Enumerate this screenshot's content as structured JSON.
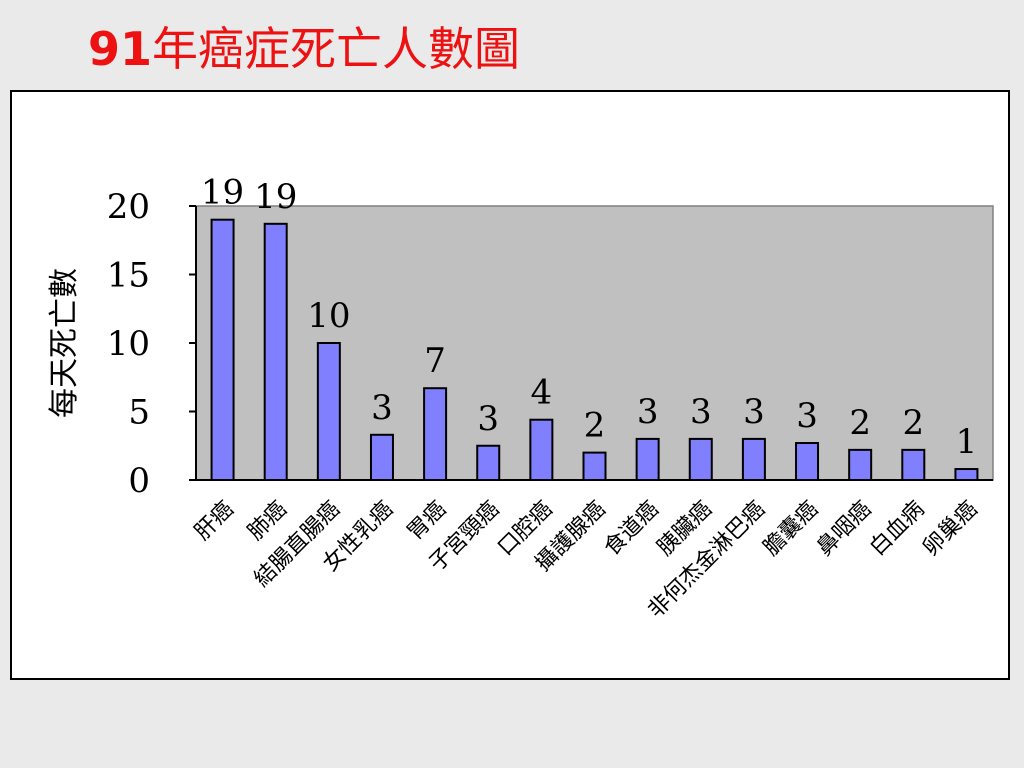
{
  "slide": {
    "title_num": "91",
    "title_text": "年癌症死亡人數圖"
  },
  "colors": {
    "title": "#ee1111",
    "plot_area": "#c0c0c0",
    "bar_fill": "#8080ff",
    "bar_stroke": "#000000",
    "frame_bg": "#ffffff",
    "slide_bg": "#eaeaea"
  },
  "chart_data": {
    "type": "bar",
    "title": "",
    "xlabel": "",
    "ylabel": "每天死亡數",
    "ylim": [
      0,
      20
    ],
    "yticks": [
      0,
      5,
      10,
      15,
      20
    ],
    "grid": false,
    "legend": "none",
    "categories": [
      "肝癌",
      "肺癌",
      "結腸直腸癌",
      "女性乳癌",
      "胃癌",
      "子宮頸癌",
      "口腔癌",
      "攝護腺癌",
      "食道癌",
      "胰臟癌",
      "非何杰金淋巴癌",
      "膽囊癌",
      "鼻咽癌",
      "白血病",
      "卵巢癌"
    ],
    "values": [
      19.0,
      18.7,
      10.0,
      3.3,
      6.7,
      2.5,
      4.4,
      2.0,
      3.0,
      3.0,
      3.0,
      2.7,
      2.2,
      2.2,
      0.8
    ],
    "data_labels": [
      "19",
      "19",
      "10",
      "3",
      "7",
      "3",
      "4",
      "2",
      "3",
      "3",
      "3",
      "3",
      "2",
      "2",
      "1"
    ]
  }
}
